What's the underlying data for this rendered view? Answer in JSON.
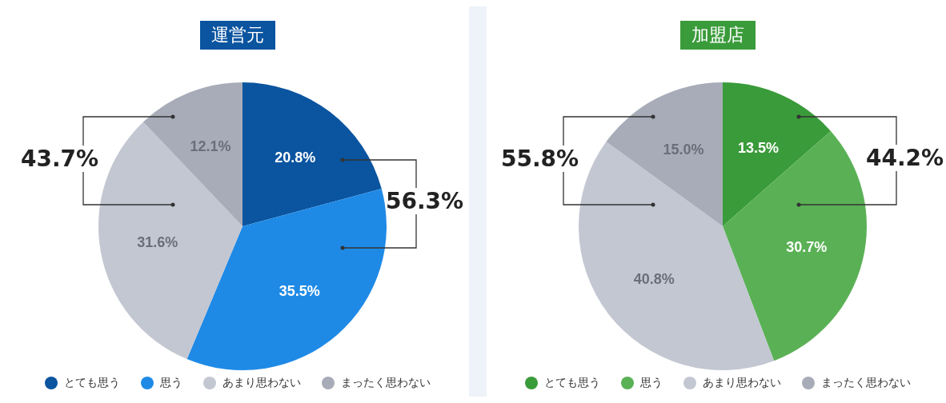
{
  "chart_data": [
    {
      "type": "pie",
      "title": "運営元",
      "categories": [
        "とても思う",
        "思う",
        "あまり思わない",
        "まったく思わない"
      ],
      "values": [
        20.8,
        35.5,
        31.6,
        12.1
      ],
      "value_labels": [
        "20.8%",
        "35.5%",
        "31.6%",
        "12.1%"
      ],
      "colors": [
        "#0a54a0",
        "#1f8ae6",
        "#c3c7d2",
        "#a7acb8"
      ],
      "legend": "bottom",
      "annotations": [
        "56.3%",
        "43.7%"
      ]
    },
    {
      "type": "pie",
      "title": "加盟店",
      "categories": [
        "とても思う",
        "思う",
        "あまり思わない",
        "まったく思わない"
      ],
      "values": [
        13.5,
        30.7,
        40.8,
        15.0
      ],
      "value_labels": [
        "13.5%",
        "30.7%",
        "40.8%",
        "15.0%"
      ],
      "colors": [
        "#3a9b3a",
        "#5ab155",
        "#c3c7d2",
        "#a7acb8"
      ],
      "legend": "bottom",
      "annotations": [
        "44.2%",
        "55.8%"
      ]
    }
  ]
}
